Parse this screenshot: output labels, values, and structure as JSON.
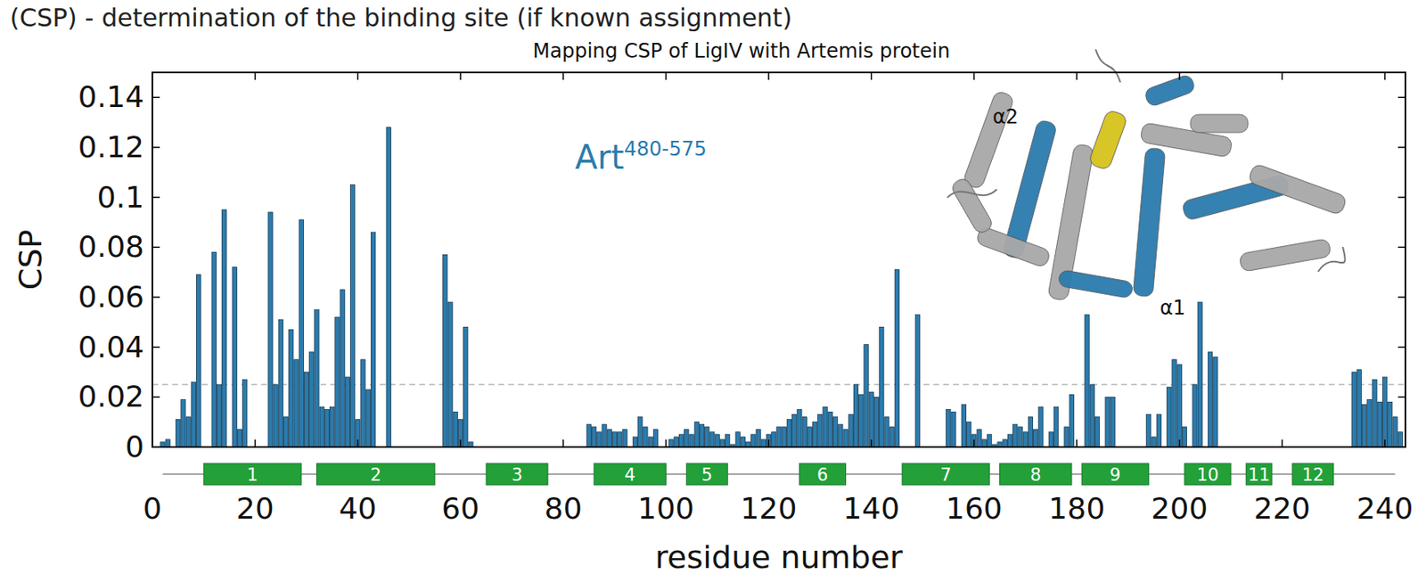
{
  "chart_data": {
    "type": "bar",
    "heading": "(CSP) - determination of the binding site (if known assignment)",
    "title": "Mapping CSP of LigIV with Artemis protein",
    "x_label": "residue number",
    "y_label": "CSP",
    "annotation": {
      "text": "Art",
      "superscript": "480-575"
    },
    "structure_labels": [
      "α2",
      "α1"
    ],
    "color": "#2b7bad",
    "threshold": 0.025,
    "xlim": [
      0,
      244
    ],
    "ylim": [
      0,
      0.15
    ],
    "xticks": [
      0,
      20,
      40,
      60,
      80,
      100,
      120,
      140,
      160,
      180,
      200,
      220,
      240
    ],
    "yticks": [
      0,
      0.02,
      0.04,
      0.06,
      0.08,
      0.1,
      0.12,
      0.14
    ],
    "x": [
      2,
      3,
      5,
      6,
      7,
      8,
      9,
      12,
      13,
      14,
      16,
      17,
      18,
      23,
      24,
      25,
      26,
      27,
      28,
      29,
      30,
      31,
      32,
      33,
      34,
      35,
      36,
      37,
      38,
      39,
      40,
      41,
      42,
      43,
      46,
      57,
      58,
      59,
      60,
      61,
      62,
      85,
      86,
      87,
      88,
      89,
      90,
      91,
      92,
      94,
      95,
      96,
      97,
      98,
      101,
      102,
      103,
      104,
      105,
      106,
      107,
      108,
      109,
      110,
      111,
      112,
      113,
      114,
      115,
      116,
      117,
      118,
      119,
      120,
      121,
      122,
      123,
      124,
      125,
      126,
      127,
      128,
      129,
      130,
      131,
      132,
      133,
      134,
      135,
      136,
      137,
      138,
      139,
      140,
      141,
      142,
      143,
      144,
      145,
      149,
      155,
      156,
      158,
      159,
      160,
      161,
      162,
      163,
      164,
      165,
      166,
      167,
      168,
      169,
      170,
      171,
      172,
      173,
      175,
      176,
      178,
      179,
      182,
      183,
      184,
      186,
      187,
      194,
      195,
      196,
      198,
      199,
      200,
      201,
      203,
      204,
      206,
      207,
      234,
      235,
      236,
      237,
      238,
      239,
      240,
      241,
      242,
      243
    ],
    "values": [
      0.002,
      0.003,
      0.011,
      0.019,
      0.012,
      0.026,
      0.069,
      0.078,
      0.025,
      0.095,
      0.072,
      0.007,
      0.027,
      0.094,
      0.025,
      0.051,
      0.012,
      0.047,
      0.035,
      0.091,
      0.03,
      0.038,
      0.055,
      0.016,
      0.015,
      0.016,
      0.052,
      0.063,
      0.028,
      0.105,
      0.011,
      0.035,
      0.023,
      0.086,
      0.128,
      0.077,
      0.058,
      0.014,
      0.011,
      0.048,
      0.002,
      0.009,
      0.008,
      0.006,
      0.009,
      0.007,
      0.006,
      0.006,
      0.007,
      0.004,
      0.012,
      0.008,
      0.004,
      0.007,
      0.003,
      0.004,
      0.005,
      0.007,
      0.005,
      0.01,
      0.009,
      0.008,
      0.006,
      0.005,
      0.003,
      0.005,
      0.001,
      0.006,
      0.004,
      0.002,
      0.005,
      0.007,
      0.003,
      0.005,
      0.006,
      0.008,
      0.008,
      0.011,
      0.013,
      0.015,
      0.012,
      0.008,
      0.01,
      0.013,
      0.016,
      0.014,
      0.012,
      0.009,
      0.007,
      0.013,
      0.025,
      0.021,
      0.041,
      0.022,
      0.02,
      0.048,
      0.012,
      0.008,
      0.071,
      0.053,
      0.015,
      0.014,
      0.017,
      0.01,
      0.005,
      0.007,
      0.003,
      0.005,
      0.001,
      0.002,
      0.003,
      0.005,
      0.009,
      0.008,
      0.006,
      0.012,
      0.007,
      0.016,
      0.006,
      0.016,
      0.008,
      0.021,
      0.053,
      0.025,
      0.012,
      0.02,
      0.02,
      0.013,
      0.004,
      0.013,
      0.024,
      0.035,
      0.033,
      0.008,
      0.025,
      0.058,
      0.038,
      0.036,
      0.03,
      0.031,
      0.017,
      0.019,
      0.027,
      0.018,
      0.028,
      0.018,
      0.012,
      0.006
    ],
    "helices": [
      {
        "label": "1",
        "start": 10,
        "end": 29
      },
      {
        "label": "2",
        "start": 32,
        "end": 55
      },
      {
        "label": "3",
        "start": 65,
        "end": 77
      },
      {
        "label": "4",
        "start": 86,
        "end": 100
      },
      {
        "label": "5",
        "start": 104,
        "end": 112
      },
      {
        "label": "6",
        "start": 126,
        "end": 135
      },
      {
        "label": "7",
        "start": 146,
        "end": 163
      },
      {
        "label": "8",
        "start": 165,
        "end": 179
      },
      {
        "label": "9",
        "start": 181,
        "end": 194
      },
      {
        "label": "10",
        "start": 201,
        "end": 210
      },
      {
        "label": "11",
        "start": 213,
        "end": 218
      },
      {
        "label": "12",
        "start": 222,
        "end": 230
      }
    ]
  }
}
